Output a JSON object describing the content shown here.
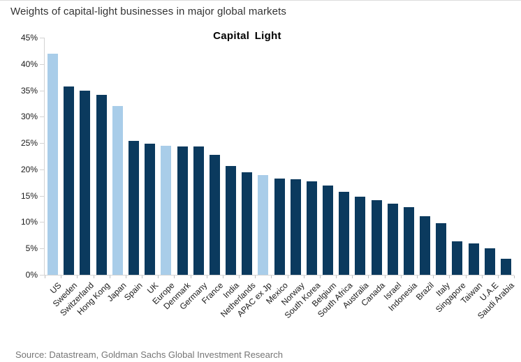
{
  "header": {
    "title": "Weights of capital-light businesses in major global markets"
  },
  "footer": {
    "source": "Source: Datastream, Goldman Sachs Global Investment Research"
  },
  "chart_data": {
    "type": "bar",
    "title": "Capital Light",
    "xlabel": "",
    "ylabel": "",
    "ylim": [
      0,
      45
    ],
    "ytick_step": 5,
    "ytick_suffix": "%",
    "grid": false,
    "legend": "none",
    "categories": [
      "US",
      "Sweden",
      "Switzerland",
      "Hong Kong",
      "Japan",
      "Spain",
      "UK",
      "Europe",
      "Denmark",
      "Germany",
      "France",
      "India",
      "Netherlands",
      "APAC ex Jp",
      "Mexico",
      "Norway",
      "South Korea",
      "Belgium",
      "South Africa",
      "Australia",
      "Canada",
      "Israel",
      "Indonesia",
      "Brazil",
      "Italy",
      "Singapore",
      "Taiwan",
      "U.A.E",
      "Saudi Arabia"
    ],
    "values": [
      42.0,
      35.7,
      34.9,
      34.2,
      32.1,
      25.4,
      24.9,
      24.5,
      24.4,
      24.4,
      22.8,
      20.6,
      19.4,
      18.9,
      18.3,
      18.1,
      17.7,
      17.0,
      15.7,
      14.8,
      14.2,
      13.5,
      12.9,
      11.1,
      9.8,
      6.3,
      6.0,
      5.1,
      3.0
    ],
    "highlighted_categories": [
      "US",
      "Japan",
      "Europe",
      "APAC ex Jp"
    ],
    "colors": {
      "bar_default": "#0b3a5e",
      "bar_highlight": "#a9cde9",
      "axis_line": "#d3d3d3",
      "tick_mark": "#c0c0c0"
    }
  }
}
